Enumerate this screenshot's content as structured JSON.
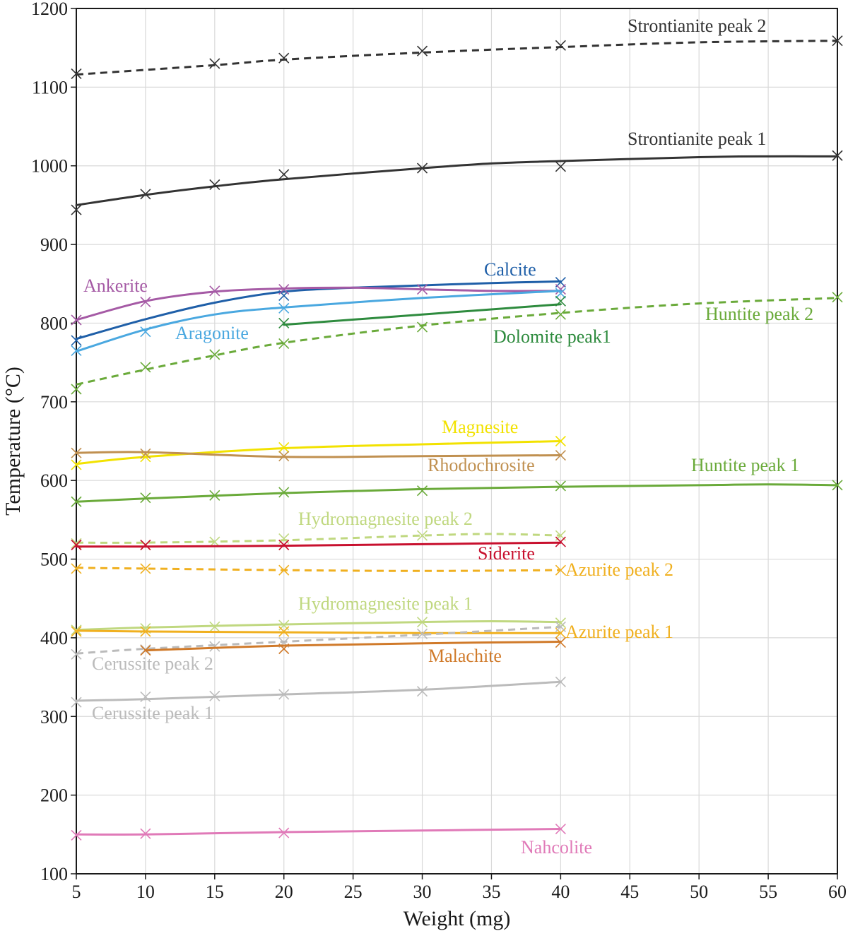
{
  "chart_data": {
    "type": "line",
    "xlabel": "Weight (mg)",
    "ylabel": "Temperature (°C)",
    "xlim": [
      5,
      60
    ],
    "ylim": [
      100,
      1200
    ],
    "xticks": [
      5,
      10,
      15,
      20,
      25,
      30,
      35,
      40,
      45,
      50,
      55,
      60
    ],
    "yticks": [
      100,
      200,
      300,
      400,
      500,
      600,
      700,
      800,
      900,
      1000,
      1100,
      1200
    ],
    "grid": true,
    "legend": "inline labels next to each curve",
    "marker": "x",
    "series": [
      {
        "name": "Strontianite peak 2",
        "color": "#333333",
        "dash": true,
        "x": [
          5,
          15,
          20,
          30,
          40,
          60
        ],
        "y": [
          1117,
          1130,
          1137,
          1146,
          1153,
          1159
        ],
        "curve_x": [
          5,
          15,
          20,
          30,
          40,
          50,
          60
        ],
        "curve_y": [
          1116,
          1128,
          1135,
          1144,
          1151,
          1157,
          1159
        ]
      },
      {
        "name": "Strontianite peak 1",
        "color": "#333333",
        "dash": false,
        "x": [
          5,
          10,
          15,
          20,
          30,
          40,
          60
        ],
        "y": [
          944,
          964,
          976,
          989,
          997,
          999,
          1013
        ],
        "curve_x": [
          5,
          10,
          15,
          20,
          30,
          35,
          40,
          50,
          55,
          60
        ],
        "curve_y": [
          950,
          963,
          974,
          983,
          997,
          1003,
          1006,
          1011,
          1012,
          1012
        ]
      },
      {
        "name": "Calcite",
        "color": "#1f5fa8",
        "dash": false,
        "x": [
          5,
          20,
          40
        ],
        "y": [
          778,
          835,
          852
        ],
        "curve_x": [
          5,
          10,
          15,
          20,
          25,
          30,
          35,
          40
        ],
        "curve_y": [
          780,
          805,
          826,
          840,
          845,
          848,
          851,
          853
        ]
      },
      {
        "name": "Ankerite",
        "color": "#a55aa5",
        "dash": false,
        "x": [
          5,
          10,
          15,
          20,
          30,
          40
        ],
        "y": [
          804,
          827,
          841,
          843,
          843,
          843
        ],
        "curve_x": [
          5,
          10,
          15,
          20,
          25,
          30,
          35,
          40
        ],
        "curve_y": [
          804,
          828,
          840,
          844,
          845,
          843,
          841,
          841
        ]
      },
      {
        "name": "Aragonite",
        "color": "#4aa8e0",
        "dash": false,
        "x": [
          5,
          10,
          20,
          40
        ],
        "y": [
          765,
          789,
          819,
          838
        ],
        "curve_x": [
          5,
          10,
          15,
          20,
          30,
          40
        ],
        "curve_y": [
          764,
          792,
          811,
          820,
          832,
          841
        ]
      },
      {
        "name": "Dolomite peak1",
        "color": "#2e8b3e",
        "dash": false,
        "x": [
          20,
          40
        ],
        "y": [
          800,
          828
        ],
        "curve_x": [
          20,
          30,
          40
        ],
        "curve_y": [
          798,
          811,
          824
        ]
      },
      {
        "name": "Huntite peak 2",
        "color": "#6aaa3a",
        "dash": true,
        "x": [
          5,
          10,
          15,
          20,
          30,
          40,
          60
        ],
        "y": [
          716,
          744,
          760,
          774,
          795,
          811,
          833
        ],
        "curve_x": [
          5,
          10,
          15,
          20,
          30,
          40,
          50,
          60
        ],
        "curve_y": [
          722,
          741,
          759,
          775,
          797,
          813,
          825,
          832
        ]
      },
      {
        "name": "Magnesite",
        "color": "#f2e200",
        "dash": false,
        "x": [
          5,
          10,
          20,
          40
        ],
        "y": [
          620,
          630,
          642,
          650
        ],
        "curve_x": [
          5,
          10,
          20,
          30,
          40
        ],
        "curve_y": [
          621,
          630,
          641,
          646,
          650
        ]
      },
      {
        "name": "Rhodochrosite",
        "color": "#c09050",
        "dash": false,
        "x": [
          5,
          10,
          20,
          40
        ],
        "y": [
          635,
          634,
          631,
          632
        ],
        "curve_x": [
          5,
          10,
          20,
          30,
          40
        ],
        "curve_y": [
          635,
          636,
          630,
          631,
          632
        ]
      },
      {
        "name": "Huntite peak 1",
        "color": "#6aaa3a",
        "dash": false,
        "x": [
          5,
          10,
          15,
          20,
          30,
          40,
          60
        ],
        "y": [
          573,
          578,
          581,
          585,
          587,
          593,
          594
        ],
        "curve_x": [
          5,
          10,
          20,
          30,
          40,
          50,
          55,
          60
        ],
        "curve_y": [
          573,
          577,
          584,
          589,
          592,
          594,
          595,
          594
        ]
      },
      {
        "name": "Hydromagnesite peak 2",
        "color": "#c0d880",
        "dash": true,
        "x": [
          5,
          10,
          15,
          20,
          30,
          40
        ],
        "y": [
          520,
          518,
          522,
          526,
          530,
          530
        ],
        "curve_x": [
          5,
          10,
          20,
          30,
          35,
          40
        ],
        "curve_y": [
          521,
          521,
          524,
          530,
          532,
          530
        ]
      },
      {
        "name": "Siderite",
        "color": "#c8102e",
        "dash": false,
        "x": [
          5,
          10,
          20,
          40
        ],
        "y": [
          518,
          518,
          518,
          522
        ],
        "curve_x": [
          5,
          10,
          20,
          30,
          40
        ],
        "curve_y": [
          516,
          516,
          517,
          519,
          521
        ]
      },
      {
        "name": "Azurite peak 2",
        "color": "#f0b020",
        "dash": true,
        "x": [
          5,
          10,
          20,
          40
        ],
        "y": [
          488,
          488,
          486,
          486
        ],
        "curve_x": [
          5,
          10,
          20,
          30,
          40
        ],
        "curve_y": [
          489,
          488,
          486,
          485,
          486
        ]
      },
      {
        "name": "Hydromagnesite peak 1",
        "color": "#c0d880",
        "dash": false,
        "x": [
          5,
          10,
          15,
          20,
          30,
          40
        ],
        "y": [
          410,
          412,
          414,
          416,
          420,
          419
        ],
        "curve_x": [
          5,
          10,
          20,
          30,
          35,
          40
        ],
        "curve_y": [
          410,
          413,
          417,
          420,
          421,
          420
        ]
      },
      {
        "name": "Azurite peak 1",
        "color": "#f0b020",
        "dash": false,
        "x": [
          5,
          10,
          20,
          40
        ],
        "y": [
          408,
          408,
          408,
          406
        ],
        "curve_x": [
          5,
          10,
          20,
          30,
          40
        ],
        "curve_y": [
          409,
          408,
          407,
          406,
          406
        ]
      },
      {
        "name": "Cerussite peak 2",
        "color": "#bbbbbb",
        "dash": true,
        "x": [
          5,
          10,
          15,
          20,
          30,
          40
        ],
        "y": [
          379,
          385,
          389,
          394,
          405,
          414
        ],
        "curve_x": [
          5,
          10,
          20,
          30,
          40
        ],
        "curve_y": [
          380,
          386,
          395,
          404,
          414
        ]
      },
      {
        "name": "Malachite",
        "color": "#d07a2a",
        "dash": false,
        "x": [
          10,
          20,
          40
        ],
        "y": [
          384,
          386,
          394
        ],
        "curve_x": [
          10,
          20,
          30,
          40
        ],
        "curve_y": [
          384,
          390,
          393,
          395
        ]
      },
      {
        "name": "Cerussite peak 1",
        "color": "#bbbbbb",
        "dash": false,
        "x": [
          5,
          10,
          15,
          20,
          30,
          40
        ],
        "y": [
          318,
          325,
          326,
          328,
          332,
          344
        ],
        "curve_x": [
          5,
          10,
          20,
          30,
          40
        ],
        "curve_y": [
          320,
          322,
          328,
          334,
          344
        ]
      },
      {
        "name": "Nahcolite",
        "color": "#e07ab8",
        "dash": false,
        "x": [
          5,
          10,
          20,
          40
        ],
        "y": [
          149,
          151,
          152,
          157
        ],
        "curve_x": [
          5,
          10,
          20,
          30,
          40
        ],
        "curve_y": [
          150,
          150,
          153,
          155,
          157
        ]
      }
    ]
  }
}
